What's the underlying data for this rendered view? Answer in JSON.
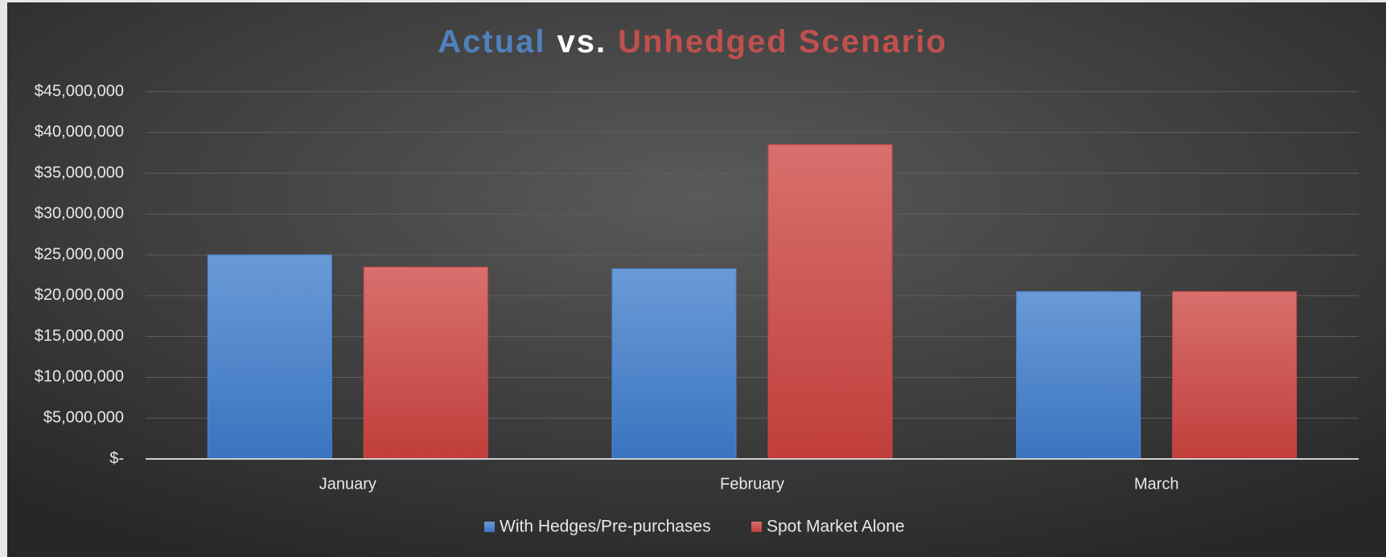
{
  "chart_data": {
    "type": "bar",
    "title_parts": [
      {
        "text": "Actual",
        "color": "#4f81bd"
      },
      {
        "text": "vs.",
        "color": "#ffffff"
      },
      {
        "text": "Unhedged Scenario",
        "color": "#c0504d"
      }
    ],
    "categories": [
      "January",
      "February",
      "March"
    ],
    "series": [
      {
        "name": "With Hedges/Pre-purchases",
        "color": "#4a86d0",
        "values": [
          25000000,
          23300000,
          20500000
        ]
      },
      {
        "name": "Spot Market Alone",
        "color": "#d04a47",
        "values": [
          23500000,
          38500000,
          20500000
        ]
      }
    ],
    "ylim": [
      0,
      45000000
    ],
    "yticks": [
      {
        "value": 0,
        "label": "$-"
      },
      {
        "value": 5000000,
        "label": "$5,000,000"
      },
      {
        "value": 10000000,
        "label": "$10,000,000"
      },
      {
        "value": 15000000,
        "label": "$15,000,000"
      },
      {
        "value": 20000000,
        "label": "$20,000,000"
      },
      {
        "value": 25000000,
        "label": "$25,000,000"
      },
      {
        "value": 30000000,
        "label": "$30,000,000"
      },
      {
        "value": 35000000,
        "label": "$35,000,000"
      },
      {
        "value": 40000000,
        "label": "$40,000,000"
      },
      {
        "value": 45000000,
        "label": "$45,000,000"
      }
    ],
    "grid": true,
    "legend": "bottom"
  }
}
